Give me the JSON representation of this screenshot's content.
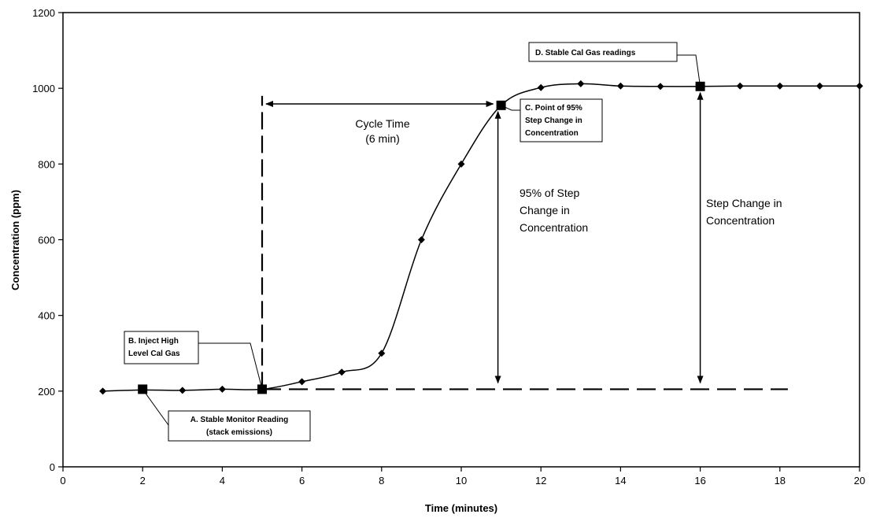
{
  "chart_data": {
    "type": "line",
    "title": "",
    "xlabel": "Time (minutes)",
    "ylabel": "Concentration (ppm)",
    "xlim": [
      0,
      20
    ],
    "ylim": [
      0,
      1200
    ],
    "x_ticks": [
      0,
      2,
      4,
      6,
      8,
      10,
      12,
      14,
      16,
      18,
      20
    ],
    "y_ticks": [
      0,
      200,
      400,
      600,
      800,
      1000,
      1200
    ],
    "grid": false,
    "legend": "none",
    "series": [
      {
        "x": [
          1,
          2,
          3,
          4,
          5,
          6,
          7,
          8,
          9,
          10,
          11,
          12,
          13,
          14,
          15,
          16,
          17,
          18,
          19,
          20
        ],
        "y": [
          200,
          203,
          202,
          205,
          205,
          225,
          250,
          300,
          600,
          800,
          955,
          1002,
          1012,
          1006,
          1005,
          1005,
          1006,
          1006,
          1006,
          1006
        ]
      }
    ],
    "reference_lines": {
      "baseline_y": 205,
      "baseline_x_range": [
        5,
        18.2
      ],
      "injection_x": 5,
      "injection_y_range": [
        205,
        980
      ]
    },
    "key_points": [
      {
        "id": "A",
        "x": 2,
        "y": 205
      },
      {
        "id": "B",
        "x": 5,
        "y": 205
      },
      {
        "id": "C",
        "x": 11,
        "y": 955
      },
      {
        "id": "D",
        "x": 16,
        "y": 1005
      }
    ],
    "annotations": {
      "a_line1": "A. Stable Monitor Reading",
      "a_line2": "(stack emissions)",
      "b_line1": "B. Inject High",
      "b_line2": "Level Cal Gas",
      "c_line1": "C. Point of 95%",
      "c_line2": "Step Change in",
      "c_line3": "Concentration",
      "d_line1": "D. Stable Cal Gas readings",
      "cycle_line1": "Cycle Time",
      "cycle_line2": "(6 min)",
      "pct_line1": "95% of Step",
      "pct_line2": "Change in",
      "pct_line3": "Concentration",
      "step_line1": "Step Change in",
      "step_line2": "Concentration"
    }
  }
}
